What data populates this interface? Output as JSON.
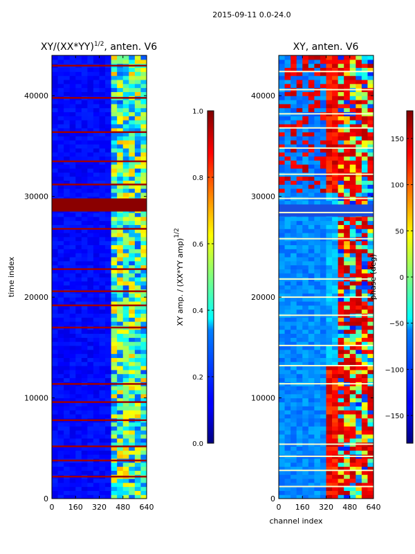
{
  "suptitle": "2015-09-11 0.0-24.0",
  "chart_data": [
    {
      "type": "heatmap",
      "title_main": "XY/(XX*YY)",
      "title_sup": "1/2",
      "title_rest": ", anten. V6",
      "xlabel": "",
      "ylabel": "time index",
      "xlim": [
        0,
        640
      ],
      "ylim": [
        0,
        44000
      ],
      "xticks": [
        0,
        160,
        320,
        480,
        640
      ],
      "yticks": [
        0,
        10000,
        20000,
        30000,
        40000
      ],
      "xtick_labels": [
        "0",
        "160",
        "320",
        "480",
        "640"
      ],
      "ytick_labels": [
        "0",
        "10000",
        "20000",
        "30000",
        "40000"
      ],
      "colormap": "jet",
      "colorbar": {
        "min": 0.0,
        "max": 1.0,
        "ticks": [
          0.0,
          0.2,
          0.4,
          0.6,
          0.8,
          1.0
        ],
        "tick_labels": [
          "0.0",
          "0.2",
          "0.4",
          "0.6",
          "0.8",
          "1.0"
        ],
        "label_main": "XY amp. / (XX*YY amp)",
        "label_sup": "1/2"
      },
      "high_value_channel_range": [
        400,
        640
      ],
      "saturated_time_range": [
        28500,
        29800
      ],
      "saturated_time_rows": [
        11400,
        2200,
        3800,
        5200,
        7800,
        9600,
        17000,
        19200,
        20600,
        22800,
        26800,
        31200,
        33500,
        36400,
        39800,
        43000
      ]
    },
    {
      "type": "heatmap",
      "title_main": "XY, anten. V6",
      "xlabel": "channel index",
      "ylabel": "",
      "xlim": [
        0,
        640
      ],
      "ylim": [
        0,
        44000
      ],
      "xticks": [
        0,
        160,
        320,
        480,
        640
      ],
      "yticks": [
        0,
        10000,
        20000,
        30000,
        40000
      ],
      "xtick_labels": [
        "0",
        "160",
        "320",
        "480",
        "640"
      ],
      "ytick_labels": [
        "0",
        "10000",
        "20000",
        "30000",
        "40000"
      ],
      "colormap": "jet",
      "colorbar": {
        "min": -180,
        "max": 180,
        "ticks": [
          -150,
          -100,
          -50,
          0,
          50,
          100,
          150
        ],
        "tick_labels": [
          "−150",
          "−100",
          "−50",
          "0",
          "50",
          "100",
          "150"
        ],
        "label_main": "phase (deg)"
      },
      "high_value_channel_range": [
        400,
        640
      ],
      "saturated_time_range": [
        28000,
        29200
      ],
      "flagged_time_rows": [
        1200,
        2800,
        4200,
        5400,
        11400,
        13200,
        15200,
        18200,
        20000,
        21800,
        25800,
        28400,
        29800,
        32200,
        34800,
        36800,
        38200,
        40600,
        42400
      ]
    }
  ]
}
